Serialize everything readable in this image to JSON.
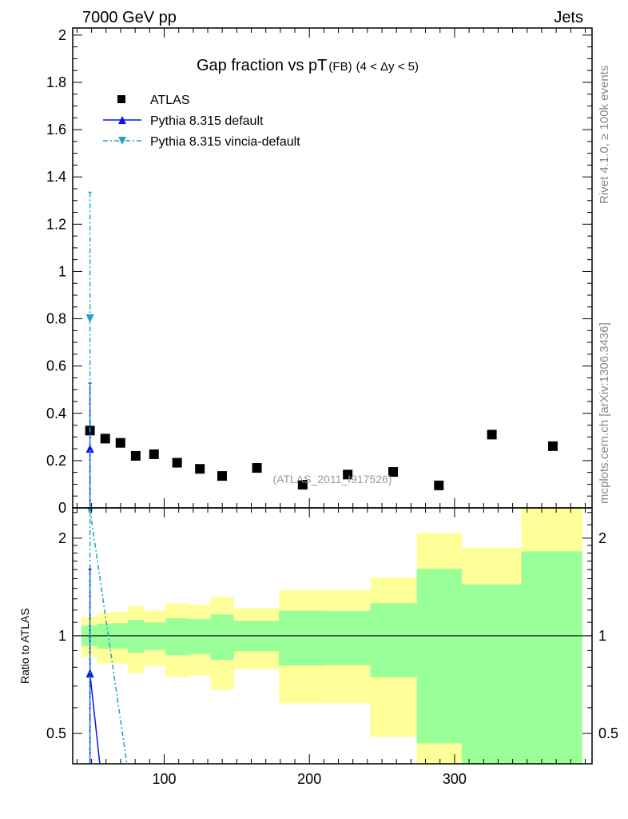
{
  "header": {
    "left": "7000 GeV pp",
    "right": "Jets"
  },
  "side_text": {
    "rivet": "Rivet 4.1.0, ≥ 100k events",
    "mcplots": "mcplots.cern.ch [arXiv:1306.3436]"
  },
  "watermark": "(ATLAS_2011_I917526)",
  "chart_data": [
    {
      "type": "scatter",
      "panel": "main",
      "title": {
        "main": "Gap fraction vs pT",
        "sub": "(FB)",
        "range": "(4 < Δy < 5)"
      },
      "xlabel": "",
      "ylabel": "",
      "xlim": [
        37,
        394.7
      ],
      "ylim": [
        0,
        2.03
      ],
      "yticks": [
        0,
        0.2,
        0.4,
        0.6,
        0.8,
        1,
        1.2,
        1.4,
        1.6,
        1.8,
        2
      ],
      "ytick_labels": [
        "0",
        "0.2",
        "0.4",
        "0.6",
        "0.8",
        "1",
        "1.2",
        "1.4",
        "1.6",
        "1.8",
        "2"
      ],
      "legend_position": "top-left",
      "bin_edges": [
        43,
        54,
        64,
        75,
        86,
        101,
        117,
        132,
        148,
        179,
        211,
        242,
        274,
        305,
        346,
        388
      ],
      "series": [
        {
          "name": "ATLAS",
          "marker": "square",
          "color": "#000000",
          "x": [
            48.9,
            59.4,
            69.9,
            80.4,
            93.0,
            108.9,
            124.6,
            139.9,
            163.9,
            195.4,
            226.4,
            257.7,
            289.2,
            325.7,
            367.7
          ],
          "y": [
            0.327,
            0.293,
            0.275,
            0.22,
            0.227,
            0.191,
            0.165,
            0.135,
            0.169,
            0.098,
            0.141,
            0.152,
            0.095,
            0.31,
            0.261
          ]
        },
        {
          "name": "Pythia 8.315 default",
          "marker": "triangle-up",
          "color": "#0a14f0",
          "linestyle": "solid",
          "x": [
            48.9
          ],
          "y": [
            0.25
          ],
          "yerr_up": [
            0.278
          ],
          "yerr_down": [
            0.25
          ]
        },
        {
          "name": "Pythia 8.315 vincia-default",
          "marker": "triangle-down",
          "color": "#1ba3c8",
          "linestyle": "dashdot",
          "x": [
            48.9
          ],
          "y": [
            0.802
          ],
          "yerr_up": [
            0.533
          ],
          "yerr_down": [
            0.802
          ]
        }
      ]
    },
    {
      "type": "area",
      "panel": "ratio",
      "ylabel": "Ratio to ATLAS",
      "yscale": "log",
      "xlim": [
        37,
        394.7
      ],
      "ylim": [
        0.403,
        2.48
      ],
      "xticks": [
        100,
        200,
        300
      ],
      "xtick_labels": [
        "100",
        "200",
        "300"
      ],
      "yticks": [
        0.5,
        1,
        2
      ],
      "ytick_labels": [
        "0.5",
        "1",
        "2"
      ],
      "bin_edges": [
        43,
        54,
        64,
        75,
        86,
        101,
        117,
        132,
        148,
        179,
        211,
        242,
        274,
        305,
        346,
        388
      ],
      "band_total": {
        "color": "#ffff99",
        "up": [
          1.145,
          1.179,
          1.186,
          1.234,
          1.197,
          1.26,
          1.248,
          1.319,
          1.218,
          1.381,
          1.381,
          1.514,
          2.075,
          1.872,
          3.0
        ],
        "down": [
          0.861,
          0.821,
          0.821,
          0.768,
          0.806,
          0.745,
          0.754,
          0.681,
          0.789,
          0.619,
          0.62,
          0.488,
          0.35,
          0.566,
          0.3
        ]
      },
      "band_stat": {
        "color": "#99ff99",
        "up": [
          1.075,
          1.09,
          1.094,
          1.119,
          1.1,
          1.132,
          1.126,
          1.163,
          1.111,
          1.195,
          1.192,
          1.26,
          1.609,
          1.44,
          1.822
        ],
        "down": [
          0.93,
          0.912,
          0.912,
          0.887,
          0.904,
          0.871,
          0.878,
          0.842,
          0.895,
          0.809,
          0.812,
          0.745,
          0.466,
          0.35,
          0.3
        ]
      },
      "series": [
        {
          "name": "Pythia 8.315 default",
          "color": "#0a14f0",
          "linestyle": "solid",
          "marker": "triangle-up",
          "x": [
            48.9,
            59.4
          ],
          "y": [
            0.765,
            0.283
          ],
          "yerr_up": [
            0.84
          ],
          "yerr_down": [
            0.765
          ]
        },
        {
          "name": "Pythia 8.315 vincia-default",
          "color": "#1ba3c8",
          "linestyle": "dashdot",
          "marker": "triangle-down",
          "x": [
            48.9,
            80.4
          ],
          "y": [
            2.45,
            0.262
          ],
          "yerr_up": [
            1.63
          ],
          "yerr_down": [
            2.45
          ]
        }
      ]
    }
  ]
}
